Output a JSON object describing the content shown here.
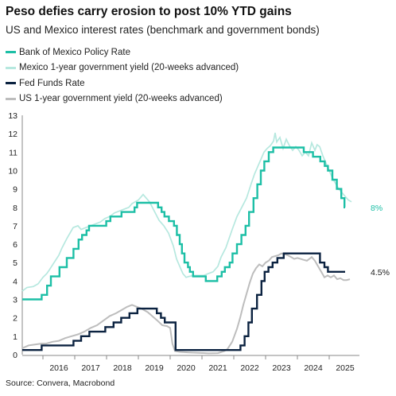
{
  "chart_data": {
    "type": "line",
    "title": "Peso defies carry erosion to post 10% YTD gains",
    "subtitle": "US and Mexico interest rates (benchmark and government bonds)",
    "source": "Source: Convera, Macrobond",
    "ylim": [
      0,
      13
    ],
    "yticks": [
      "0",
      "1",
      "2",
      "3",
      "4",
      "5",
      "6",
      "7",
      "8",
      "9",
      "10",
      "11",
      "12",
      "13"
    ],
    "xticks": [
      {
        "label": "2016",
        "x": 2016.5
      },
      {
        "label": "2017",
        "x": 2017.5
      },
      {
        "label": "2018",
        "x": 2018.5
      },
      {
        "label": "2019",
        "x": 2019.5
      },
      {
        "label": "2020",
        "x": 2020.5
      },
      {
        "label": "2021",
        "x": 2021.5
      },
      {
        "label": "2022",
        "x": 2022.5
      },
      {
        "label": "2023",
        "x": 2023.5
      },
      {
        "label": "2024",
        "x": 2024.5
      },
      {
        "label": "2025",
        "x": 2025.5
      }
    ],
    "xlim": [
      2015.35,
      2025.95
    ],
    "grid": false,
    "legend_position": "top-left",
    "series": [
      {
        "name": "Bank of Mexico Policy Rate",
        "color": "#1dbfa6",
        "width": 2.4,
        "step": true,
        "end_label": "8%",
        "points": [
          [
            2015.35,
            3.0
          ],
          [
            2015.96,
            3.25
          ],
          [
            2016.13,
            3.75
          ],
          [
            2016.25,
            4.25
          ],
          [
            2016.52,
            4.75
          ],
          [
            2016.75,
            5.25
          ],
          [
            2016.96,
            5.75
          ],
          [
            2017.12,
            6.25
          ],
          [
            2017.23,
            6.5
          ],
          [
            2017.37,
            6.75
          ],
          [
            2017.45,
            7.0
          ],
          [
            2017.99,
            7.25
          ],
          [
            2018.12,
            7.5
          ],
          [
            2018.47,
            7.75
          ],
          [
            2018.88,
            8.0
          ],
          [
            2018.96,
            8.25
          ],
          [
            2019.62,
            8.0
          ],
          [
            2019.73,
            7.75
          ],
          [
            2019.82,
            7.5
          ],
          [
            2019.96,
            7.25
          ],
          [
            2020.12,
            7.0
          ],
          [
            2020.21,
            6.5
          ],
          [
            2020.3,
            6.0
          ],
          [
            2020.37,
            5.5
          ],
          [
            2020.45,
            5.0
          ],
          [
            2020.56,
            4.75
          ],
          [
            2020.62,
            4.5
          ],
          [
            2020.72,
            4.25
          ],
          [
            2021.12,
            4.0
          ],
          [
            2021.48,
            4.25
          ],
          [
            2021.62,
            4.5
          ],
          [
            2021.72,
            4.75
          ],
          [
            2021.87,
            5.0
          ],
          [
            2021.96,
            5.5
          ],
          [
            2022.1,
            6.0
          ],
          [
            2022.24,
            6.5
          ],
          [
            2022.37,
            7.0
          ],
          [
            2022.48,
            7.75
          ],
          [
            2022.62,
            8.5
          ],
          [
            2022.74,
            9.25
          ],
          [
            2022.85,
            10.0
          ],
          [
            2022.96,
            10.5
          ],
          [
            2023.1,
            11.0
          ],
          [
            2023.24,
            11.25
          ],
          [
            2024.2,
            11.0
          ],
          [
            2024.49,
            10.75
          ],
          [
            2024.72,
            10.5
          ],
          [
            2024.86,
            10.25
          ],
          [
            2024.96,
            10.0
          ],
          [
            2025.1,
            9.5
          ],
          [
            2025.24,
            9.0
          ],
          [
            2025.38,
            8.5
          ],
          [
            2025.48,
            8.0
          ],
          [
            2025.5,
            8.0
          ]
        ]
      },
      {
        "name": "Mexico 1-year government yield (20-weeks advanced)",
        "color": "#b6e8df",
        "width": 1.7,
        "step": false,
        "points": [
          [
            2015.35,
            3.45
          ],
          [
            2015.5,
            3.65
          ],
          [
            2015.7,
            3.7
          ],
          [
            2015.85,
            3.85
          ],
          [
            2016.0,
            4.2
          ],
          [
            2016.12,
            4.4
          ],
          [
            2016.2,
            4.6
          ],
          [
            2016.35,
            5.0
          ],
          [
            2016.5,
            5.4
          ],
          [
            2016.6,
            5.8
          ],
          [
            2016.75,
            6.3
          ],
          [
            2016.85,
            6.6
          ],
          [
            2016.95,
            6.9
          ],
          [
            2017.1,
            7.0
          ],
          [
            2017.2,
            6.8
          ],
          [
            2017.35,
            6.9
          ],
          [
            2017.5,
            7.0
          ],
          [
            2017.65,
            7.1
          ],
          [
            2017.8,
            7.2
          ],
          [
            2017.95,
            7.4
          ],
          [
            2018.1,
            7.5
          ],
          [
            2018.25,
            7.7
          ],
          [
            2018.4,
            7.8
          ],
          [
            2018.55,
            7.9
          ],
          [
            2018.7,
            8.0
          ],
          [
            2018.8,
            8.2
          ],
          [
            2018.9,
            8.3
          ],
          [
            2019.0,
            8.4
          ],
          [
            2019.1,
            8.6
          ],
          [
            2019.15,
            8.7
          ],
          [
            2019.2,
            8.6
          ],
          [
            2019.35,
            8.3
          ],
          [
            2019.5,
            7.8
          ],
          [
            2019.65,
            7.3
          ],
          [
            2019.8,
            7.0
          ],
          [
            2019.95,
            6.6
          ],
          [
            2020.1,
            5.9
          ],
          [
            2020.2,
            5.2
          ],
          [
            2020.3,
            4.8
          ],
          [
            2020.4,
            4.4
          ],
          [
            2020.5,
            4.2
          ],
          [
            2020.6,
            4.25
          ],
          [
            2020.75,
            4.3
          ],
          [
            2020.9,
            4.3
          ],
          [
            2021.05,
            4.3
          ],
          [
            2021.2,
            4.4
          ],
          [
            2021.35,
            4.5
          ],
          [
            2021.5,
            4.8
          ],
          [
            2021.6,
            5.3
          ],
          [
            2021.75,
            5.8
          ],
          [
            2021.85,
            6.3
          ],
          [
            2021.95,
            6.8
          ],
          [
            2022.1,
            7.5
          ],
          [
            2022.25,
            8.0
          ],
          [
            2022.4,
            8.5
          ],
          [
            2022.55,
            9.3
          ],
          [
            2022.65,
            9.8
          ],
          [
            2022.75,
            10.2
          ],
          [
            2022.85,
            10.6
          ],
          [
            2022.95,
            11.0
          ],
          [
            2023.05,
            11.2
          ],
          [
            2023.15,
            11.35
          ],
          [
            2023.25,
            11.6
          ],
          [
            2023.3,
            12.05
          ],
          [
            2023.35,
            11.55
          ],
          [
            2023.45,
            11.8
          ],
          [
            2023.55,
            11.2
          ],
          [
            2023.65,
            11.7
          ],
          [
            2023.75,
            11.35
          ],
          [
            2023.85,
            11.1
          ],
          [
            2023.95,
            11.3
          ],
          [
            2024.05,
            11.1
          ],
          [
            2024.15,
            10.8
          ],
          [
            2024.25,
            11.0
          ],
          [
            2024.35,
            10.8
          ],
          [
            2024.45,
            11.5
          ],
          [
            2024.55,
            11.1
          ],
          [
            2024.62,
            11.4
          ],
          [
            2024.7,
            11.3
          ],
          [
            2024.8,
            10.8
          ],
          [
            2024.9,
            10.4
          ],
          [
            2025.0,
            10.0
          ],
          [
            2025.1,
            9.6
          ],
          [
            2025.2,
            9.3
          ],
          [
            2025.3,
            9.0
          ],
          [
            2025.4,
            8.8
          ],
          [
            2025.5,
            8.6
          ],
          [
            2025.6,
            8.4
          ],
          [
            2025.7,
            8.3
          ]
        ]
      },
      {
        "name": "Fed Funds Rate",
        "color": "#0b2240",
        "width": 2.4,
        "step": true,
        "end_label": "4.5%",
        "points": [
          [
            2015.35,
            0.25
          ],
          [
            2015.96,
            0.5
          ],
          [
            2016.96,
            0.75
          ],
          [
            2017.2,
            1.0
          ],
          [
            2017.46,
            1.25
          ],
          [
            2017.96,
            1.5
          ],
          [
            2018.22,
            1.75
          ],
          [
            2018.46,
            2.0
          ],
          [
            2018.72,
            2.25
          ],
          [
            2018.97,
            2.5
          ],
          [
            2019.58,
            2.25
          ],
          [
            2019.71,
            2.0
          ],
          [
            2019.83,
            1.75
          ],
          [
            2020.17,
            0.25
          ],
          [
            2022.21,
            0.5
          ],
          [
            2022.34,
            1.0
          ],
          [
            2022.46,
            1.75
          ],
          [
            2022.57,
            2.5
          ],
          [
            2022.73,
            3.25
          ],
          [
            2022.87,
            4.0
          ],
          [
            2022.97,
            4.5
          ],
          [
            2023.09,
            4.75
          ],
          [
            2023.22,
            5.0
          ],
          [
            2023.37,
            5.25
          ],
          [
            2023.57,
            5.5
          ],
          [
            2024.71,
            5.0
          ],
          [
            2024.85,
            4.75
          ],
          [
            2024.96,
            4.5
          ],
          [
            2025.5,
            4.5
          ]
        ]
      },
      {
        "name": "US 1-year government yield (20-weeks advanced)",
        "color": "#bdbdbd",
        "width": 2.0,
        "step": false,
        "points": [
          [
            2015.35,
            0.35
          ],
          [
            2015.55,
            0.5
          ],
          [
            2015.75,
            0.55
          ],
          [
            2015.95,
            0.6
          ],
          [
            2016.1,
            0.6
          ],
          [
            2016.3,
            0.7
          ],
          [
            2016.5,
            0.75
          ],
          [
            2016.7,
            0.9
          ],
          [
            2016.9,
            1.0
          ],
          [
            2017.1,
            1.1
          ],
          [
            2017.3,
            1.25
          ],
          [
            2017.5,
            1.45
          ],
          [
            2017.7,
            1.6
          ],
          [
            2017.9,
            1.85
          ],
          [
            2018.1,
            2.1
          ],
          [
            2018.3,
            2.25
          ],
          [
            2018.5,
            2.45
          ],
          [
            2018.65,
            2.6
          ],
          [
            2018.8,
            2.7
          ],
          [
            2018.95,
            2.6
          ],
          [
            2019.1,
            2.5
          ],
          [
            2019.3,
            2.3
          ],
          [
            2019.5,
            2.0
          ],
          [
            2019.6,
            1.85
          ],
          [
            2019.75,
            1.6
          ],
          [
            2019.9,
            1.55
          ],
          [
            2020.0,
            1.45
          ],
          [
            2020.07,
            0.6
          ],
          [
            2020.15,
            0.2
          ],
          [
            2020.3,
            0.15
          ],
          [
            2020.6,
            0.12
          ],
          [
            2020.9,
            0.1
          ],
          [
            2021.2,
            0.07
          ],
          [
            2021.5,
            0.08
          ],
          [
            2021.7,
            0.2
          ],
          [
            2021.8,
            0.3
          ],
          [
            2021.95,
            0.7
          ],
          [
            2022.1,
            1.4
          ],
          [
            2022.2,
            2.0
          ],
          [
            2022.3,
            2.7
          ],
          [
            2022.4,
            3.3
          ],
          [
            2022.5,
            3.9
          ],
          [
            2022.6,
            4.4
          ],
          [
            2022.7,
            4.7
          ],
          [
            2022.8,
            4.9
          ],
          [
            2022.9,
            4.8
          ],
          [
            2023.0,
            5.0
          ],
          [
            2023.1,
            5.1
          ],
          [
            2023.2,
            5.3
          ],
          [
            2023.3,
            5.35
          ],
          [
            2023.4,
            5.4
          ],
          [
            2023.5,
            5.5
          ],
          [
            2023.6,
            5.45
          ],
          [
            2023.7,
            5.4
          ],
          [
            2023.8,
            5.3
          ],
          [
            2023.9,
            5.2
          ],
          [
            2024.0,
            5.25
          ],
          [
            2024.1,
            5.2
          ],
          [
            2024.2,
            5.15
          ],
          [
            2024.3,
            5.1
          ],
          [
            2024.45,
            5.3
          ],
          [
            2024.55,
            5.1
          ],
          [
            2024.65,
            4.8
          ],
          [
            2024.75,
            4.5
          ],
          [
            2024.85,
            4.2
          ],
          [
            2024.95,
            4.3
          ],
          [
            2025.05,
            4.2
          ],
          [
            2025.15,
            4.3
          ],
          [
            2025.25,
            4.1
          ],
          [
            2025.35,
            4.15
          ],
          [
            2025.45,
            4.05
          ],
          [
            2025.55,
            4.05
          ],
          [
            2025.65,
            4.1
          ]
        ]
      }
    ]
  }
}
